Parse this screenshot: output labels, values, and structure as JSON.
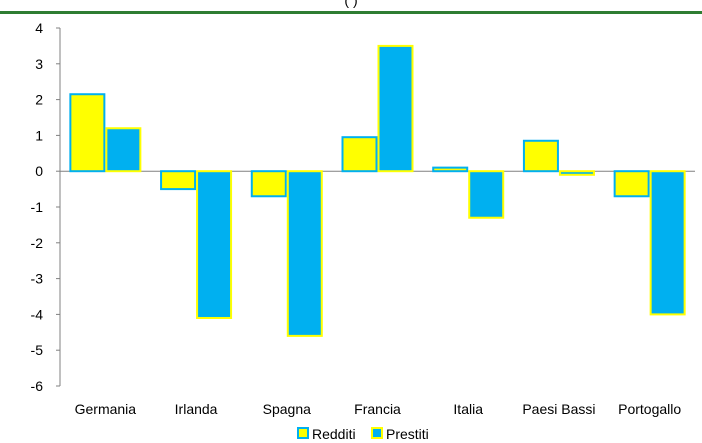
{
  "header": {
    "title_fragment": "(                                          )"
  },
  "chart_data": {
    "type": "bar",
    "categories": [
      "Germania",
      "Irlanda",
      "Spagna",
      "Francia",
      "Italia",
      "Paesi Bassi",
      "Portogallo"
    ],
    "series": [
      {
        "name": "Redditi",
        "values": [
          2.15,
          -0.5,
          -0.7,
          0.95,
          0.1,
          0.85,
          -0.7
        ],
        "color": "#ffff00",
        "border": "#00b0f0"
      },
      {
        "name": "Prestiti",
        "values": [
          1.2,
          -4.1,
          -4.6,
          3.5,
          -1.3,
          -0.1,
          -4.0
        ],
        "color": "#00b0f0",
        "border": "#ffff00"
      }
    ],
    "yticks": [
      "4",
      "3",
      "2",
      "1",
      "0",
      "-1",
      "-2",
      "-3",
      "-4",
      "-5",
      "-6"
    ],
    "ylim": [
      -6,
      4
    ],
    "grid": false,
    "legend": "bottom",
    "xlabel": "",
    "ylabel": ""
  }
}
